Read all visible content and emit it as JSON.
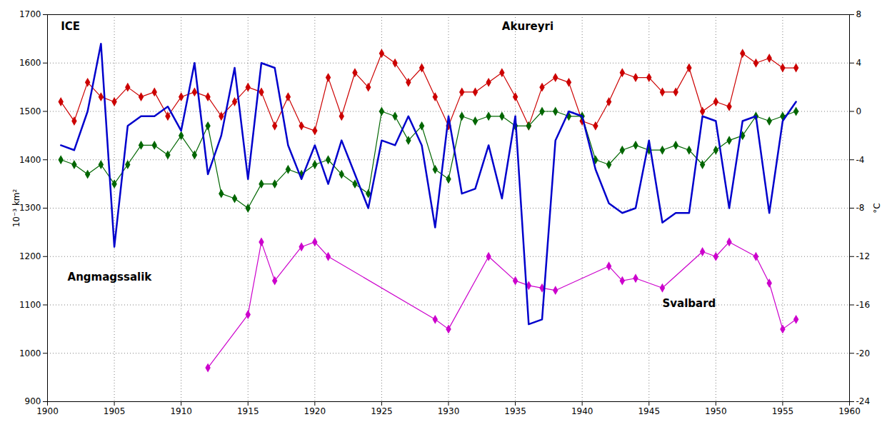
{
  "chart_data": {
    "type": "line",
    "x": [
      1901,
      1902,
      1903,
      1904,
      1905,
      1906,
      1907,
      1908,
      1909,
      1910,
      1911,
      1912,
      1913,
      1914,
      1915,
      1916,
      1917,
      1918,
      1919,
      1920,
      1921,
      1922,
      1923,
      1924,
      1925,
      1926,
      1927,
      1928,
      1929,
      1930,
      1931,
      1932,
      1933,
      1934,
      1935,
      1936,
      1937,
      1938,
      1939,
      1940,
      1941,
      1942,
      1943,
      1944,
      1945,
      1946,
      1947,
      1948,
      1949,
      1950,
      1951,
      1952,
      1953,
      1954,
      1955,
      1956
    ],
    "series": [
      {
        "name": "ICE",
        "color": "#0000cc",
        "marker": "none",
        "line_style": "solid",
        "values": [
          1430,
          1420,
          1500,
          1640,
          1220,
          1470,
          1490,
          1490,
          1510,
          1460,
          1600,
          1370,
          1450,
          1590,
          1360,
          1600,
          1590,
          1430,
          1360,
          1430,
          1350,
          1440,
          1370,
          1300,
          1440,
          1430,
          1490,
          1430,
          1260,
          1490,
          1330,
          1340,
          1430,
          1320,
          1490,
          1060,
          1070,
          1440,
          1500,
          1490,
          1380,
          1310,
          1290,
          1300,
          1440,
          1270,
          1290,
          1290,
          1490,
          1480,
          1300,
          1480,
          1490,
          1290,
          1480,
          1520
        ]
      },
      {
        "name": "Akureyri",
        "color": "#cc0000",
        "marker": "diamond",
        "line_style": "solid",
        "values": [
          1520,
          1480,
          1560,
          1530,
          1520,
          1550,
          1530,
          1540,
          1490,
          1530,
          1540,
          1530,
          1490,
          1520,
          1550,
          1540,
          1470,
          1530,
          1470,
          1460,
          1570,
          1490,
          1580,
          1550,
          1620,
          1600,
          1560,
          1590,
          1530,
          1470,
          1540,
          1540,
          1560,
          1580,
          1530,
          1470,
          1550,
          1570,
          1560,
          1480,
          1470,
          1520,
          1580,
          1570,
          1570,
          1540,
          1540,
          1590,
          1500,
          1520,
          1510,
          1620,
          1600,
          1610,
          1590,
          1590
        ]
      },
      {
        "name": "Angmagssalik",
        "color": "#cc00cc",
        "marker": "diamond",
        "line_style": "solid",
        "x": [
          1912,
          1915,
          1916,
          1917,
          1919,
          1920,
          1921,
          1929,
          1930,
          1933,
          1935,
          1936,
          1937,
          1938,
          1942,
          1943,
          1944,
          1946,
          1949,
          1950,
          1951,
          1953,
          1954,
          1955,
          1956
        ],
        "values": [
          970,
          1080,
          1230,
          1150,
          1220,
          1230,
          1200,
          1070,
          1050,
          1200,
          1150,
          1140,
          1135,
          1130,
          1180,
          1150,
          1155,
          1135,
          1210,
          1200,
          1230,
          1200,
          1145,
          1050,
          1070
        ]
      },
      {
        "name": "Svalbard",
        "color": "#006600",
        "marker": "diamond",
        "line_style": "solid",
        "values": [
          1400,
          1390,
          1370,
          1390,
          1350,
          1390,
          1430,
          1430,
          1410,
          1450,
          1410,
          1470,
          1330,
          1320,
          1300,
          1350,
          1350,
          1380,
          1370,
          1390,
          1400,
          1370,
          1350,
          1330,
          1500,
          1490,
          1440,
          1470,
          1380,
          1360,
          1490,
          1480,
          1490,
          1490,
          1470,
          1470,
          1500,
          1500,
          1490,
          1490,
          1400,
          1390,
          1420,
          1430,
          1420,
          1420,
          1430,
          1420,
          1390,
          1420,
          1440,
          1450,
          1490,
          1480,
          1490,
          1500
        ]
      }
    ],
    "xlim": [
      1900,
      1960
    ],
    "xticks": [
      1900,
      1905,
      1910,
      1915,
      1920,
      1925,
      1930,
      1935,
      1940,
      1945,
      1950,
      1955,
      1960
    ],
    "ylim": [
      900,
      1700
    ],
    "yticks": [
      900,
      1000,
      1100,
      1200,
      1300,
      1400,
      1500,
      1600,
      1700
    ],
    "y2lim": [
      -24,
      8
    ],
    "y2ticks": [
      -24,
      -20,
      -16,
      -12,
      -8,
      -4,
      0,
      4,
      8
    ],
    "ylabel": "10⁻³ km²",
    "y2label": "°C",
    "grid": true,
    "annotations": [
      {
        "text": "ICE",
        "x": 1901.0,
        "y": 1668
      },
      {
        "text": "Akureyri",
        "x": 1934,
        "y": 1668
      },
      {
        "text": "Angmagssalik",
        "x": 1901.5,
        "y": 1150
      },
      {
        "text": "Svalbard",
        "x": 1946,
        "y": 1095
      }
    ]
  }
}
